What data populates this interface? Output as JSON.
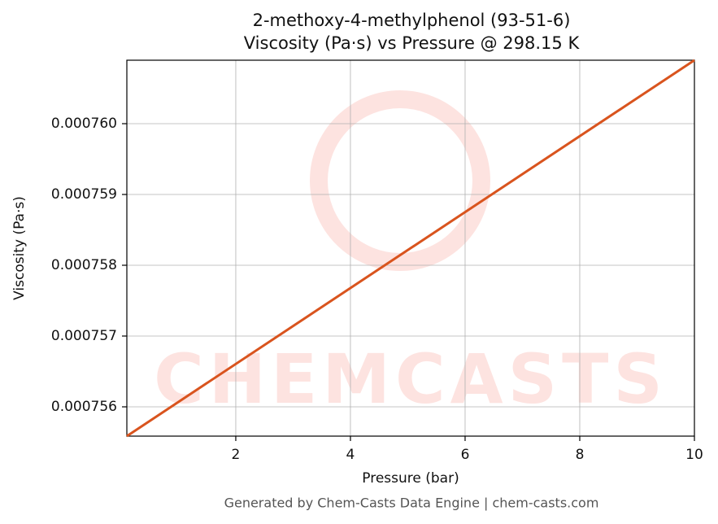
{
  "chart_data": {
    "type": "line",
    "title": "2-methoxy-4-methylphenol (93-51-6)",
    "subtitle": "Viscosity (Pa·s) vs Pressure @ 298.15 K",
    "x_label": "Pressure (bar)",
    "y_label": "Viscosity (Pa·s)",
    "footer": "Generated by Chem-Casts Data Engine | chem-casts.com",
    "watermark": "CHEMCASTS",
    "x": [
      0.1,
      10
    ],
    "series": [
      {
        "name": "Viscosity",
        "color": "#d9541e",
        "values": [
          0.0007555862,
          0.0007608966
        ]
      }
    ],
    "xlim": [
      0.1,
      10
    ],
    "xticks": [
      2,
      4,
      6,
      8,
      10
    ],
    "ylim": [
      0.0007555862,
      0.0007608966
    ],
    "yticks": [
      {
        "value": 0.000756,
        "label": "0.000756"
      },
      {
        "value": 0.000757,
        "label": "0.000757"
      },
      {
        "value": 0.000758,
        "label": "0.000758"
      },
      {
        "value": 0.000759,
        "label": "0.000759"
      },
      {
        "value": 0.00076,
        "label": "0.000760"
      }
    ],
    "grid": true
  }
}
